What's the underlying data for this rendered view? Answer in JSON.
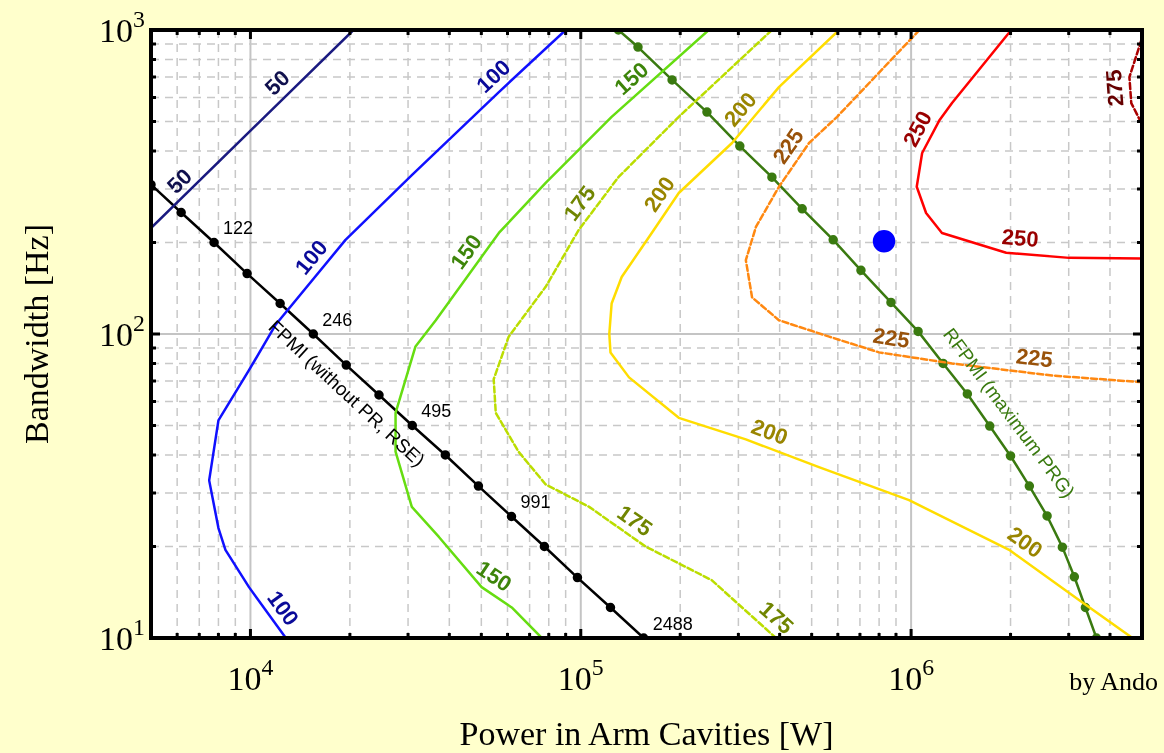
{
  "chart_data": {
    "type": "line",
    "xlabel": "Power in Arm Cavities [W]",
    "ylabel": "Bandwidth [Hz]",
    "log": "xy",
    "grid": true,
    "legend": false,
    "xlim": [
      5000,
      5000000
    ],
    "ylim": [
      10,
      1000
    ],
    "xticks": [
      {
        "value": 6000,
        "label": null
      },
      {
        "value": 7000,
        "label": null
      },
      {
        "value": 8000,
        "label": null
      },
      {
        "value": 9000,
        "label": null
      },
      {
        "value": 10000,
        "label": "10$^{4}$"
      },
      {
        "value": 20000,
        "label": null
      },
      {
        "value": 30000,
        "label": null
      },
      {
        "value": 40000,
        "label": null
      },
      {
        "value": 50000,
        "label": null
      },
      {
        "value": 60000,
        "label": null
      },
      {
        "value": 70000,
        "label": null
      },
      {
        "value": 80000,
        "label": null
      },
      {
        "value": 90000,
        "label": null
      },
      {
        "value": 100000,
        "label": "10$^{5}$"
      },
      {
        "value": 200000,
        "label": null
      },
      {
        "value": 300000,
        "label": null
      },
      {
        "value": 400000,
        "label": null
      },
      {
        "value": 500000,
        "label": null
      },
      {
        "value": 600000,
        "label": null
      },
      {
        "value": 700000,
        "label": null
      },
      {
        "value": 800000,
        "label": null
      },
      {
        "value": 900000,
        "label": null
      },
      {
        "value": 1000000,
        "label": "10$^{6}$"
      },
      {
        "value": 2000000,
        "label": null
      },
      {
        "value": 3000000,
        "label": null
      },
      {
        "value": 4000000,
        "label": null
      }
    ],
    "yticks": [
      {
        "value": 10,
        "label": "10$^{1}$"
      },
      {
        "value": 20,
        "label": null
      },
      {
        "value": 30,
        "label": null
      },
      {
        "value": 40,
        "label": null
      },
      {
        "value": 50,
        "label": null
      },
      {
        "value": 60,
        "label": null
      },
      {
        "value": 70,
        "label": null
      },
      {
        "value": 80,
        "label": null
      },
      {
        "value": 90,
        "label": null
      },
      {
        "value": 100,
        "label": "10$^{2}$"
      },
      {
        "value": 200,
        "label": null
      },
      {
        "value": 300,
        "label": null
      },
      {
        "value": 400,
        "label": null
      },
      {
        "value": 500,
        "label": null
      },
      {
        "value": 600,
        "label": null
      },
      {
        "value": 700,
        "label": null
      },
      {
        "value": 800,
        "label": null
      },
      {
        "value": 900,
        "label": null
      },
      {
        "value": 1000,
        "label": "10$^{3}$"
      }
    ],
    "series": [
      {
        "type": "line",
        "color": "#1a1a80",
        "marker": "none",
        "line_style": "solid",
        "x": [
          5000,
          11000,
          20500
        ],
        "values": [
          223,
          516,
          1000
        ]
      },
      {
        "type": "line",
        "color": "#1010ff",
        "marker": "none",
        "line_style": "solid",
        "x": [
          90000,
          56500,
          30800,
          19400,
          11900,
          9900,
          8000,
          7500,
          8000,
          8400,
          9900,
          12800
        ],
        "values": [
          1000,
          625,
          333,
          204,
          107,
          76,
          52,
          33,
          23,
          19.5,
          14.7,
          10
        ]
      },
      {
        "type": "line",
        "color": "#66dd11",
        "marker": "none",
        "line_style": "solid",
        "x": [
          244000,
          124000,
          78300,
          56500,
          36400,
          31600,
          27500,
          27500,
          30800,
          37200,
          50100,
          61800,
          76200
        ],
        "values": [
          1000,
          518,
          314,
          215,
          111,
          91,
          55,
          41,
          27,
          21.5,
          14.7,
          12.6,
          10
        ]
      },
      {
        "type": "line",
        "color": "#bbdd00",
        "marker": "none",
        "line_style": "dashed",
        "x": [
          379000,
          198000,
          130000,
          98600,
          78300,
          60500,
          54500,
          55300,
          64800,
          78300,
          106000,
          157000,
          249000,
          390000
        ],
        "values": [
          1000,
          518,
          328,
          220,
          143,
          98,
          71,
          55,
          41,
          32,
          27,
          20,
          15.5,
          10
        ]
      },
      {
        "type": "line",
        "color": "#ffdd00",
        "marker": "none",
        "line_style": "solid",
        "x": [
          605000,
          398000,
          287000,
          198000,
          164000,
          133000,
          124000,
          122000,
          123000,
          140000,
          198000,
          316000,
          526000,
          986000,
          1980000,
          3230000,
          4680000
        ],
        "values": [
          1000,
          649,
          425,
          291,
          215,
          154,
          126,
          100,
          87,
          72,
          53,
          45,
          36.5,
          28.4,
          19.5,
          13.3,
          10
        ]
      },
      {
        "type": "line",
        "color": "#ff8811",
        "marker": "none",
        "line_style": "dashed",
        "x": [
          1060000,
          597000,
          491000,
          398000,
          339000,
          316000,
          330000,
          398000,
          565000,
          800000,
          1330000,
          2670000,
          4910000
        ],
        "values": [
          1000,
          518,
          425,
          305,
          225,
          175,
          132,
          111,
          98,
          87,
          80,
          73,
          69.5
        ]
      },
      {
        "type": "line",
        "color": "#ff0000",
        "marker": "none",
        "line_style": "solid",
        "x": [
          2010000,
          1330000,
          1220000,
          1080000,
          1040000,
          1110000,
          1240000,
          1940000,
          3010000,
          4980000
        ],
        "values": [
          1000,
          575,
          506,
          394,
          305,
          250,
          215,
          185,
          178,
          177
        ]
      },
      {
        "type": "line",
        "color": "#aa0000",
        "marker": "none",
        "line_style": "dashed",
        "x": [
          4980000,
          4580000,
          4640000,
          4980000
        ],
        "values": [
          927,
          700,
          575,
          494
        ]
      },
      {
        "type": "line",
        "name": "FPMI (without PR, RSE)",
        "color": "#000000",
        "marker": "circle",
        "line_style": "solid",
        "x": [
          5000,
          6170,
          7760,
          9770,
          12300,
          15500,
          19500,
          24500,
          30900,
          38900,
          49000,
          61700,
          77600,
          97700,
          123000,
          155000
        ],
        "values": [
          310,
          251,
          200,
          158,
          126,
          100,
          79,
          63,
          50,
          40,
          31.6,
          25.1,
          20,
          15.8,
          12.6,
          10
        ]
      },
      {
        "type": "line",
        "name": "RFPMI (maximum PRG)",
        "color": "#3a7a10",
        "marker": "circle",
        "line_style": "solid",
        "x": [
          130000,
          149000,
          189000,
          241000,
          303000,
          379000,
          468000,
          581000,
          705000,
          869000,
          1050000,
          1250000,
          1480000,
          1730000,
          2000000,
          2280000,
          2580000,
          2870000,
          3120000,
          3370000,
          3640000
        ],
        "values": [
          1000,
          879,
          685,
          537,
          415,
          328,
          258,
          204,
          162,
          127,
          102,
          80,
          63.5,
          49.8,
          39.7,
          31.6,
          25.2,
          19.9,
          15.9,
          12.6,
          10
        ]
      },
      {
        "type": "scatter",
        "color": "#0000ff",
        "marker": "circle",
        "x": [
          828000
        ],
        "values": [
          202
        ]
      }
    ],
    "annotations": [
      {
        "text": "50",
        "x": 6580,
        "y": 293
      },
      {
        "text": "50",
        "x": 13000,
        "y": 617
      },
      {
        "text": "100",
        "x": 58500,
        "y": 647
      },
      {
        "text": "100",
        "x": 16600,
        "y": 166
      },
      {
        "text": "100",
        "x": 11500,
        "y": 11.7
      },
      {
        "text": "150",
        "x": 153000,
        "y": 635
      },
      {
        "text": "150",
        "x": 49100,
        "y": 174
      },
      {
        "text": "150",
        "x": 51500,
        "y": 14.5
      },
      {
        "text": "175",
        "x": 108000,
        "y": 251
      },
      {
        "text": "175",
        "x": 137000,
        "y": 22.1
      },
      {
        "text": "175",
        "x": 364000,
        "y": 10.7
      },
      {
        "text": "200",
        "x": 330000,
        "y": 509
      },
      {
        "text": "200",
        "x": 189000,
        "y": 270
      },
      {
        "text": "200",
        "x": 359000,
        "y": 42.7
      },
      {
        "text": "200",
        "x": 2080000,
        "y": 18.8
      },
      {
        "text": "225",
        "x": 464000,
        "y": 388
      },
      {
        "text": "225",
        "x": 857000,
        "y": 86.5
      },
      {
        "text": "225",
        "x": 2330000,
        "y": 74.3
      },
      {
        "text": "250",
        "x": 1150000,
        "y": 448
      },
      {
        "text": "250",
        "x": 2120000,
        "y": 184
      },
      {
        "text": "275",
        "x": 4600000,
        "y": 650
      },
      {
        "text": "122",
        "x": 7760,
        "y": 200
      },
      {
        "text": "246",
        "x": 15500,
        "y": 100
      },
      {
        "text": "495",
        "x": 30900,
        "y": 50
      },
      {
        "text": "991",
        "x": 61700,
        "y": 25.1
      },
      {
        "text": "2488",
        "x": 155000,
        "y": 10
      },
      "by Ando"
    ]
  }
}
